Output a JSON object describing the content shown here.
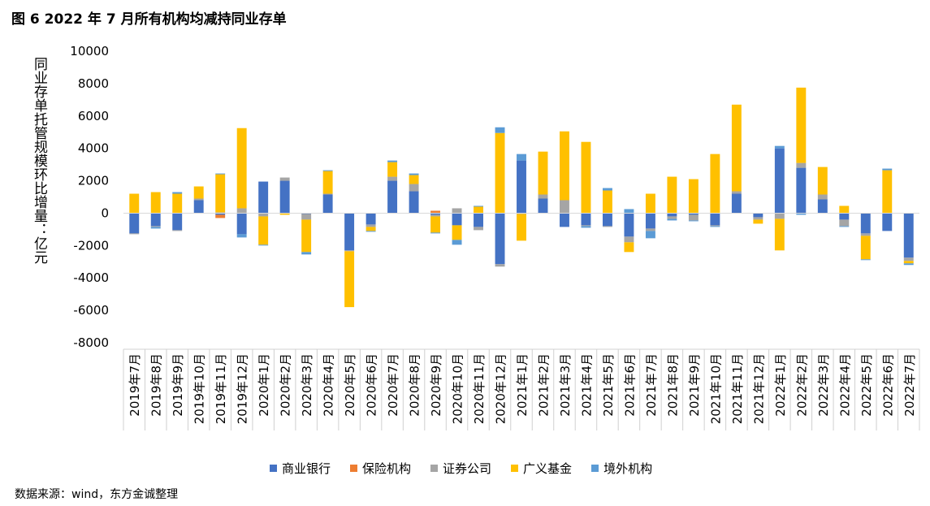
{
  "page": {
    "title": "图 6  2022 年 7 月所有机构均减持同业存单",
    "source": "数据来源：wind，东方金诚整理"
  },
  "chart_data": {
    "type": "bar",
    "stacked": true,
    "title": "图 6  2022 年 7 月所有机构均减持同业存单",
    "ylabel": "同业存单托管规模环比增量：亿元",
    "xlabel": "",
    "ylim": [
      -8000,
      10000
    ],
    "yticks": [
      10000,
      8000,
      6000,
      4000,
      2000,
      0,
      -2000,
      -4000,
      -6000,
      -8000
    ],
    "grid": false,
    "legend_position": "bottom",
    "categories": [
      "2019年7月",
      "2019年8月",
      "2019年9月",
      "2019年10月",
      "2019年11月",
      "2019年12月",
      "2020年1月",
      "2020年2月",
      "2020年3月",
      "2020年4月",
      "2020年5月",
      "2020年6月",
      "2020年7月",
      "2020年8月",
      "2020年9月",
      "2020年10月",
      "2020年11月",
      "2020年12月",
      "2021年1月",
      "2021年2月",
      "2021年3月",
      "2021年4月",
      "2021年5月",
      "2021年6月",
      "2021年7月",
      "2021年8月",
      "2021年9月",
      "2021年10月",
      "2021年11月",
      "2021年12月",
      "2022年1月",
      "2022年2月",
      "2022年3月",
      "2022年4月",
      "2022年5月",
      "2022年6月",
      "2022年7月"
    ],
    "series": [
      {
        "name": "商业银行",
        "color": "#4472C4",
        "values": [
          -1250,
          -800,
          -1050,
          800,
          -100,
          -1300,
          1950,
          2000,
          -50,
          1150,
          -2300,
          -700,
          2000,
          1350,
          -100,
          -750,
          -850,
          -3150,
          3250,
          900,
          -850,
          -750,
          -800,
          -1450,
          -950,
          -200,
          -100,
          -750,
          1200,
          -250,
          4000,
          2800,
          850,
          -400,
          -1250,
          -1100,
          -2750
        ]
      },
      {
        "name": "保险机构",
        "color": "#ED7D31",
        "values": [
          0,
          0,
          0,
          0,
          -200,
          0,
          0,
          0,
          0,
          0,
          0,
          0,
          0,
          0,
          150,
          0,
          0,
          0,
          0,
          0,
          0,
          0,
          0,
          0,
          0,
          0,
          0,
          0,
          0,
          0,
          0,
          0,
          0,
          0,
          0,
          0,
          0
        ]
      },
      {
        "name": "证券公司",
        "color": "#A5A5A5",
        "values": [
          -50,
          -50,
          -50,
          100,
          50,
          300,
          -200,
          200,
          -350,
          50,
          -50,
          -150,
          250,
          450,
          -100,
          300,
          -200,
          -150,
          -50,
          250,
          800,
          -50,
          -50,
          -350,
          -150,
          -150,
          -350,
          -50,
          150,
          -150,
          -350,
          300,
          300,
          -400,
          -150,
          0,
          -200
        ]
      },
      {
        "name": "广义基金",
        "color": "#FFC000",
        "values": [
          1200,
          1300,
          1200,
          750,
          2350,
          4950,
          -1750,
          -100,
          -2000,
          1400,
          -3450,
          -250,
          900,
          550,
          -1000,
          -900,
          400,
          4950,
          -1650,
          2650,
          4250,
          4400,
          1400,
          -600,
          1200,
          2250,
          2100,
          3650,
          5350,
          -250,
          -1950,
          4650,
          1700,
          450,
          -1450,
          2650,
          -150
        ]
      },
      {
        "name": "境外机构",
        "color": "#5B9BD5",
        "values": [
          0,
          -100,
          100,
          0,
          50,
          -200,
          -50,
          0,
          -150,
          50,
          0,
          -50,
          100,
          100,
          -50,
          -300,
          50,
          350,
          400,
          0,
          0,
          -100,
          150,
          250,
          -450,
          -100,
          -50,
          -50,
          0,
          0,
          150,
          -100,
          0,
          -50,
          -50,
          100,
          -100
        ]
      }
    ]
  }
}
